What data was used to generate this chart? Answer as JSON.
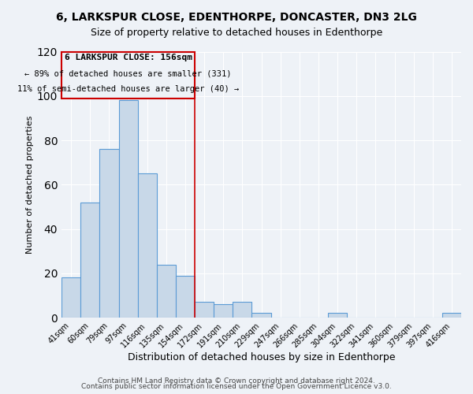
{
  "title": "6, LARKSPUR CLOSE, EDENTHORPE, DONCASTER, DN3 2LG",
  "subtitle": "Size of property relative to detached houses in Edenthorpe",
  "xlabel": "Distribution of detached houses by size in Edenthorpe",
  "ylabel": "Number of detached properties",
  "bar_labels": [
    "41sqm",
    "60sqm",
    "79sqm",
    "97sqm",
    "116sqm",
    "135sqm",
    "154sqm",
    "172sqm",
    "191sqm",
    "210sqm",
    "229sqm",
    "247sqm",
    "266sqm",
    "285sqm",
    "304sqm",
    "322sqm",
    "341sqm",
    "360sqm",
    "379sqm",
    "397sqm",
    "416sqm"
  ],
  "bar_values": [
    18,
    52,
    76,
    98,
    65,
    24,
    19,
    7,
    6,
    7,
    2,
    0,
    0,
    0,
    2,
    0,
    0,
    0,
    0,
    0,
    2
  ],
  "bar_color": "#c8d8e8",
  "bar_edge_color": "#5b9bd5",
  "marker_label_text1": "6 LARKSPUR CLOSE: 156sqm",
  "marker_label_text2": "← 89% of detached houses are smaller (331)",
  "marker_label_text3": "11% of semi-detached houses are larger (40) →",
  "marker_line_color": "#cc0000",
  "annotation_box_color": "#cc0000",
  "ylim": [
    0,
    120
  ],
  "footer1": "Contains HM Land Registry data © Crown copyright and database right 2024.",
  "footer2": "Contains public sector information licensed under the Open Government Licence v3.0.",
  "background_color": "#eef2f7",
  "title_fontsize": 10,
  "subtitle_fontsize": 9,
  "xlabel_fontsize": 9,
  "ylabel_fontsize": 8,
  "tick_fontsize": 7,
  "footer_fontsize": 6.5,
  "annotation_fontsize1": 8,
  "annotation_fontsize2": 7.5
}
